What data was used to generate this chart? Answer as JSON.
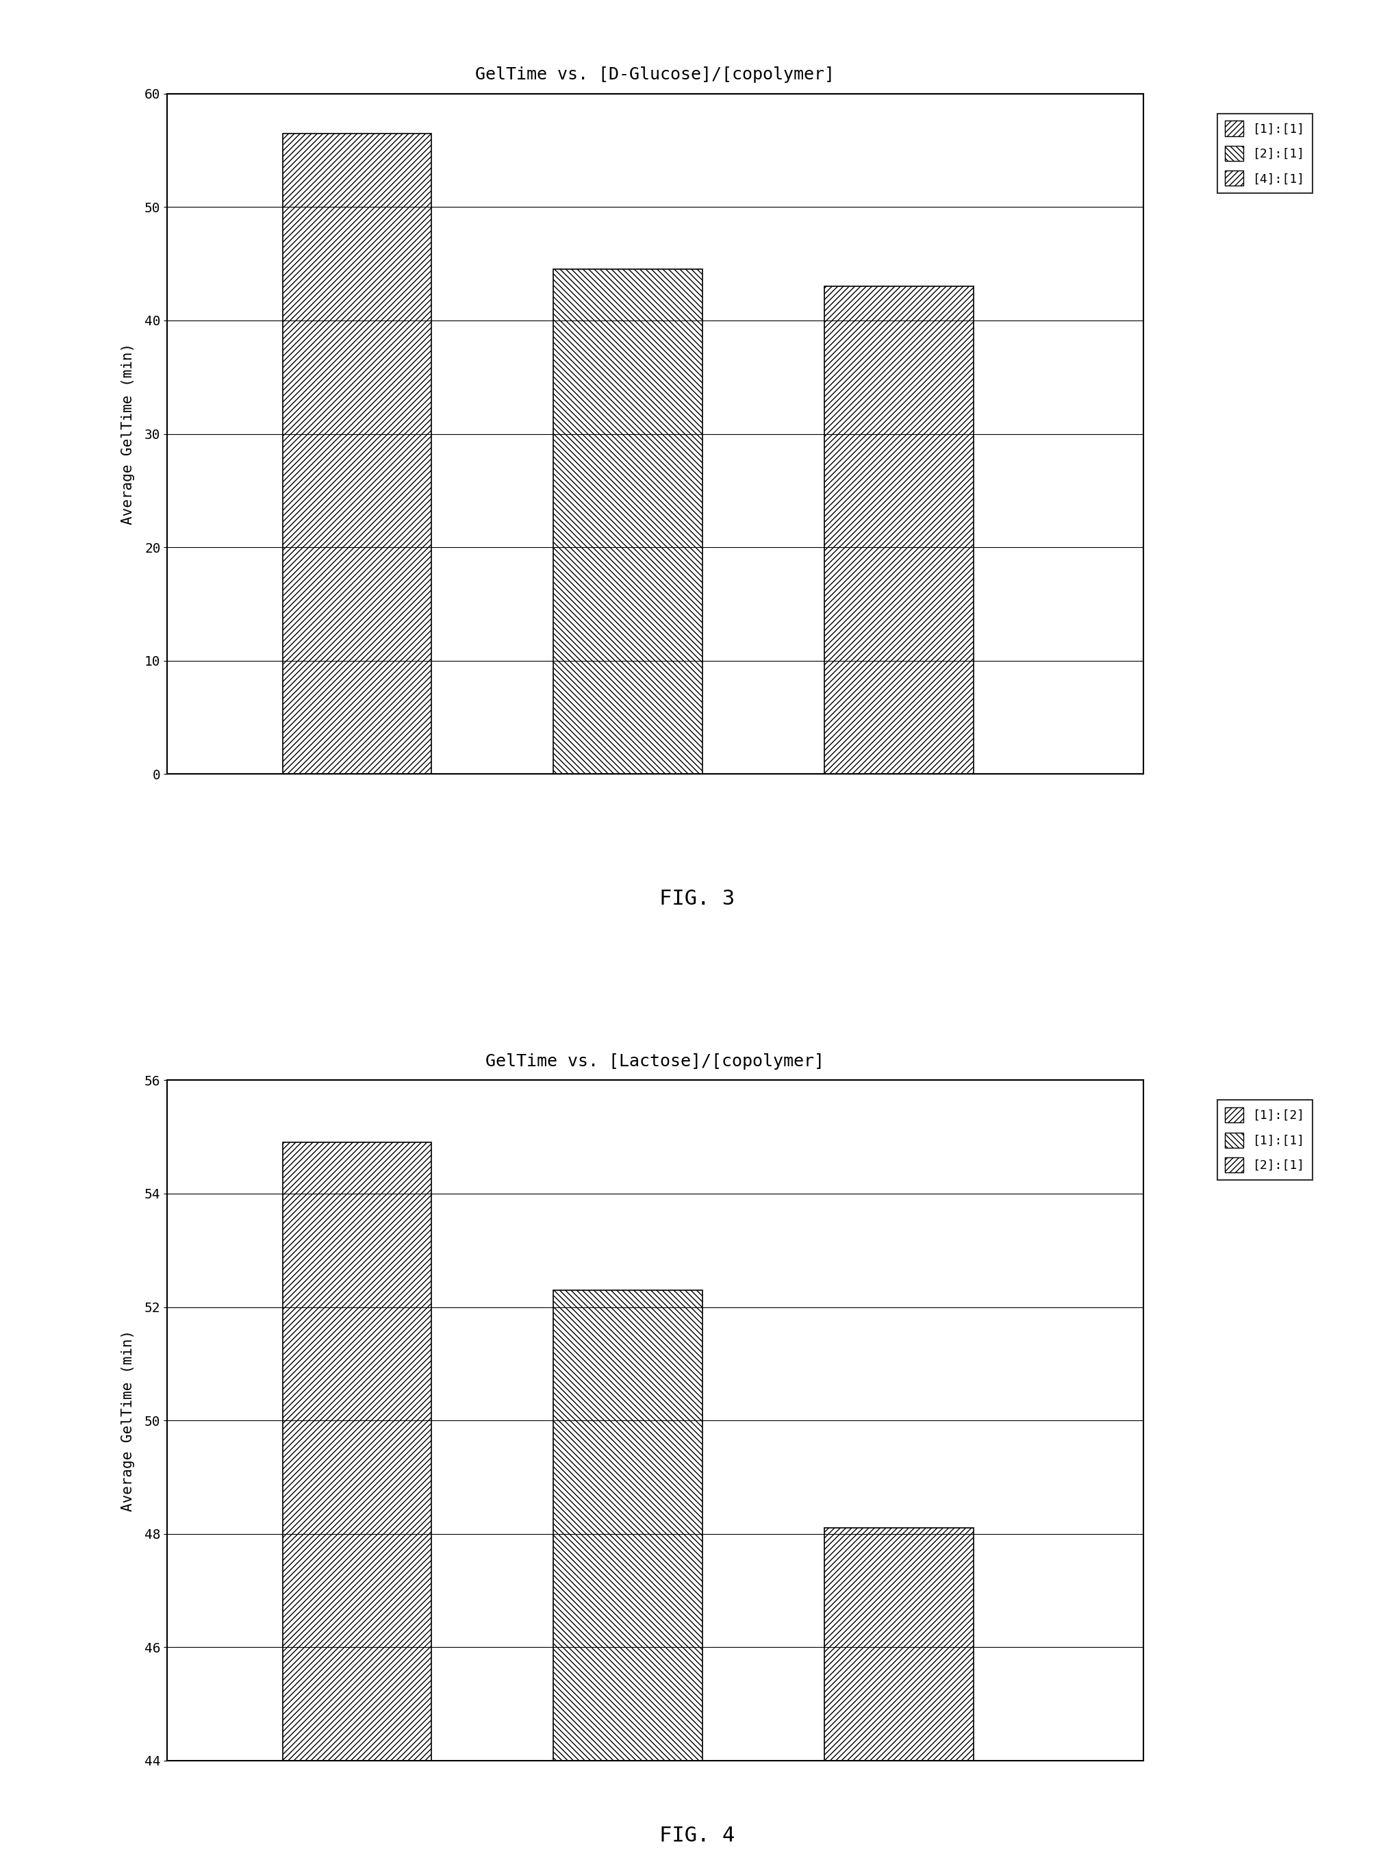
{
  "fig3": {
    "title": "GelTime vs. [D-Glucose]/[copolymer]",
    "ylabel": "Average GelTime (min)",
    "ylim": [
      0,
      60
    ],
    "yticks": [
      0,
      10,
      20,
      30,
      40,
      50,
      60
    ],
    "bars": [
      {
        "label": "[1]:[1]",
        "value": 56.5,
        "hatch": "/"
      },
      {
        "label": "[2]:[1]",
        "value": 44.5,
        "hatch": "\\\\"
      },
      {
        "label": "[4]:[1]",
        "value": 43.0,
        "hatch": "/"
      }
    ],
    "legend_labels": [
      "[1]:[1]",
      "[2]:[1]",
      "[4]:[1]"
    ],
    "legend_hatches": [
      "/",
      "\\\\",
      "/"
    ],
    "fig_label": "FIG. 3"
  },
  "fig4": {
    "title": "GelTime vs. [Lactose]/[copolymer]",
    "ylabel": "Average GelTime (min)",
    "ylim": [
      44,
      56
    ],
    "yticks": [
      44,
      46,
      48,
      50,
      52,
      54,
      56
    ],
    "bars": [
      {
        "label": "[1]:[2]",
        "value": 54.9,
        "hatch": "/"
      },
      {
        "label": "[1]:[1]",
        "value": 52.3,
        "hatch": "\\\\"
      },
      {
        "label": "[2]:[1]",
        "value": 48.1,
        "hatch": "/"
      }
    ],
    "legend_labels": [
      "[1]:[2]",
      "[1]:[1]",
      "[2]:[1]"
    ],
    "legend_hatches": [
      "/",
      "\\\\",
      "/"
    ],
    "fig_label": "FIG. 4"
  },
  "bar_color": "white",
  "bar_edgecolor": "black",
  "background_color": "white",
  "title_fontsize": 18,
  "ylabel_fontsize": 15,
  "tick_fontsize": 14,
  "legend_fontsize": 13,
  "fig_label_fontsize": 22
}
